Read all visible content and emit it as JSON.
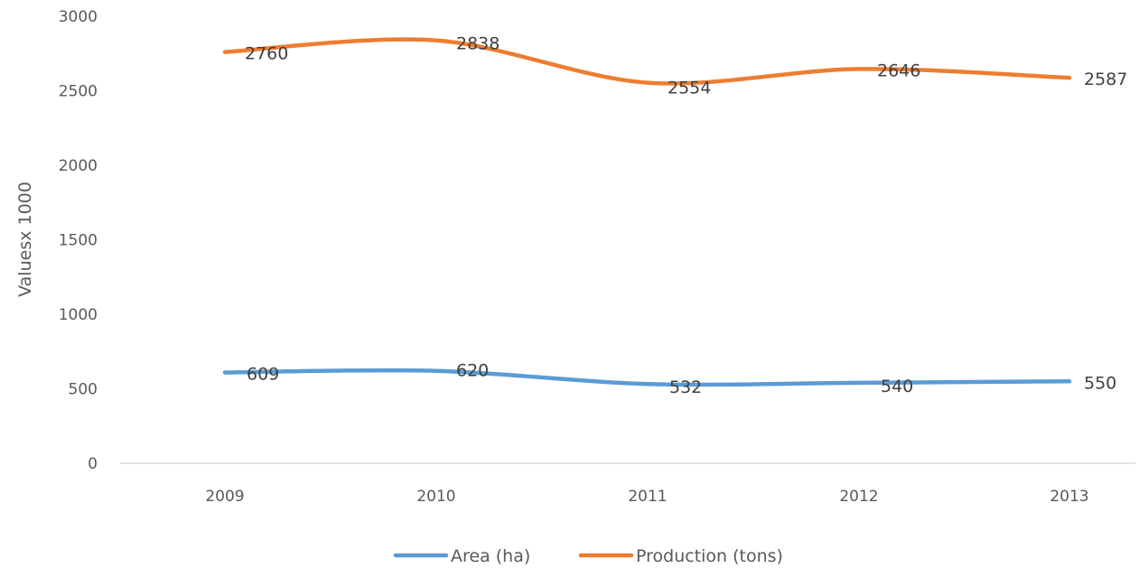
{
  "chart_data": {
    "type": "line",
    "title": "",
    "xlabel": "",
    "ylabel": "Valuesx 1000",
    "categories": [
      "2009",
      "2010",
      "2011",
      "2012",
      "2013"
    ],
    "y_ticks": [
      "0",
      "500",
      "1000",
      "1500",
      "2000",
      "2500",
      "3000"
    ],
    "ylim": [
      0,
      3000
    ],
    "grid": false,
    "legend_position": "bottom",
    "series": [
      {
        "name": "Area (ha)",
        "values": [
          609,
          620,
          532,
          540,
          550
        ],
        "color": "#5B9BD5",
        "labels": [
          "609",
          "620",
          "532",
          "540",
          "550"
        ]
      },
      {
        "name": "Production (tons)",
        "values": [
          2760,
          2838,
          2554,
          2646,
          2587
        ],
        "color": "#ED7D31",
        "labels": [
          "2760",
          "2838",
          "2554",
          "2646",
          "2587"
        ]
      }
    ]
  }
}
